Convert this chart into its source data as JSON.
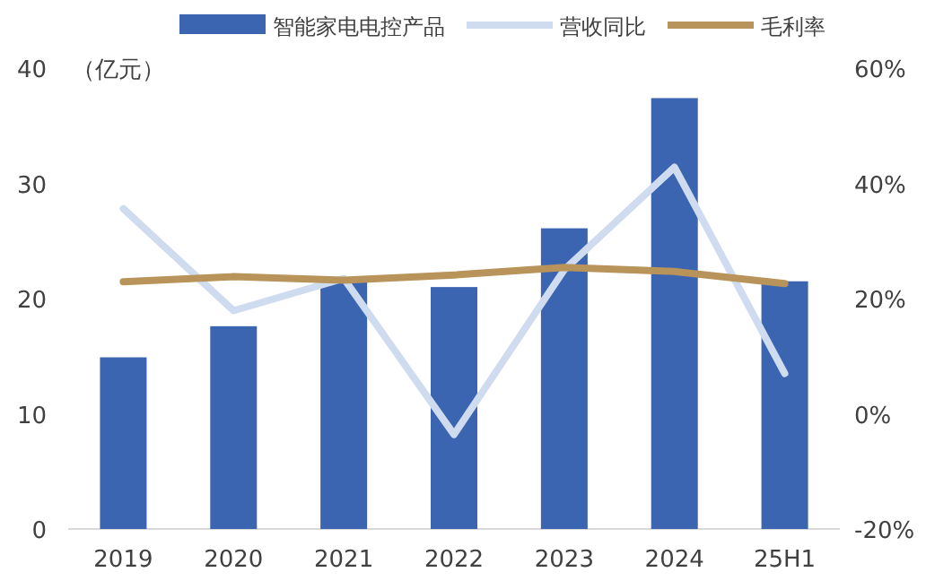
{
  "chart_data": {
    "type": "bar",
    "ylabel": "（亿元）",
    "categories": [
      "2019",
      "2020",
      "2021",
      "2022",
      "2023",
      "2024",
      "25H1"
    ],
    "series": [
      {
        "name": "智能家电电控产品",
        "color": "#3b64b1",
        "values": [
          14.9,
          17.6,
          21.5,
          21.0,
          26.1,
          37.4,
          21.5
        ]
      },
      {
        "name": "营收同比",
        "type": "line",
        "axis": "y2",
        "color": "#cfdcf0",
        "values": [
          35.6,
          17.9,
          23.5,
          -3.6,
          25.0,
          42.8,
          7.0
        ]
      },
      {
        "name": "毛利率",
        "type": "line",
        "axis": "y2",
        "color": "#b8935a",
        "values": [
          22.9,
          23.8,
          23.2,
          24.1,
          25.4,
          24.7,
          22.6
        ]
      }
    ],
    "ylim": [
      0,
      40
    ],
    "yticks": [
      0,
      10,
      20,
      30,
      40
    ],
    "y2lim": [
      -20,
      60
    ],
    "y2ticks": [
      {
        "value": -20,
        "label": "-20%"
      },
      {
        "value": 0,
        "label": "0%"
      },
      {
        "value": 20,
        "label": "20%"
      },
      {
        "value": 40,
        "label": "40%"
      },
      {
        "value": 60,
        "label": "60%"
      }
    ],
    "legend": "top"
  }
}
